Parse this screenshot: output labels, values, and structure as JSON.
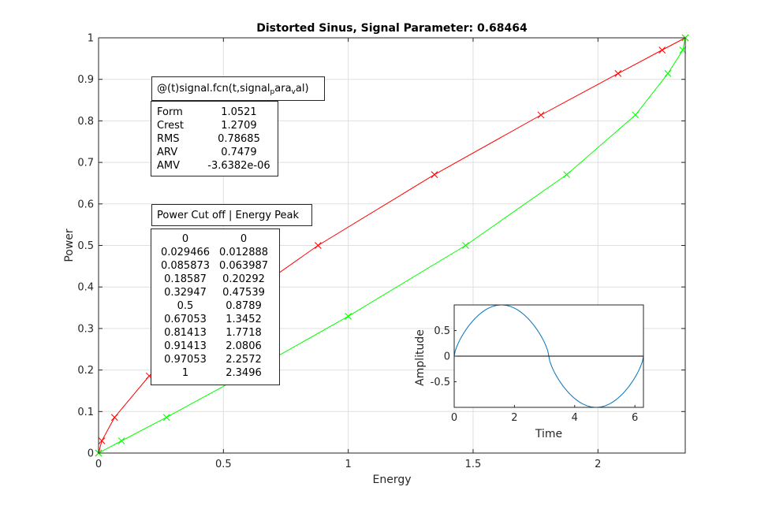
{
  "chart_data": [
    {
      "type": "line",
      "title": "Distorted Sinus, Signal Parameter: 0.68464",
      "xlabel": "Energy",
      "ylabel": "Power",
      "xlim": [
        0,
        2.3496
      ],
      "ylim": [
        0,
        1
      ],
      "xticks": [
        "0",
        "0.5",
        "1",
        "1.5",
        "2"
      ],
      "yticks": [
        "0",
        "0.1",
        "0.2",
        "0.3",
        "0.4",
        "0.5",
        "0.6",
        "0.7",
        "0.8",
        "0.9",
        "1"
      ],
      "grid": true,
      "series": [
        {
          "color": "#ff0000",
          "marker": "x",
          "x": [
            0,
            0.012888,
            0.063987,
            0.20292,
            0.47539,
            0.8789,
            1.3452,
            1.7718,
            2.0806,
            2.2572,
            2.3496
          ],
          "y": [
            0,
            0.029466,
            0.085873,
            0.18587,
            0.32947,
            0.5,
            0.67053,
            0.81413,
            0.91413,
            0.97053,
            1
          ]
        },
        {
          "color": "#00ff00",
          "marker": "x",
          "x": [
            0,
            0.092,
            0.272,
            0.577,
            1.0,
            1.47,
            1.875,
            2.15,
            2.28,
            2.34,
            2.3496
          ],
          "y": [
            0,
            0.029466,
            0.085873,
            0.18587,
            0.32947,
            0.5,
            0.67053,
            0.81413,
            0.91413,
            0.97053,
            1
          ]
        }
      ]
    },
    {
      "type": "line",
      "xlabel": "Time",
      "ylabel": "Amplitude",
      "xlim": [
        0,
        6.2832
      ],
      "ylim": [
        -1,
        1
      ],
      "xticks": [
        "0",
        "2",
        "4",
        "6"
      ],
      "yticks": [
        "-0.5",
        "0",
        "0.5"
      ],
      "grid": false,
      "series": [
        {
          "color": "#0072bd",
          "function": "sin(t) distorted",
          "x_range": [
            0,
            6.2832
          ]
        },
        {
          "color": "#000000",
          "x": [
            0,
            6.2832
          ],
          "y": [
            0,
            0
          ]
        }
      ]
    }
  ],
  "annotations": {
    "function_box": {
      "title_parts": [
        "@(t)signal.fcn(t,signal",
        "p",
        "ara",
        "v",
        "al)"
      ],
      "stats": [
        {
          "name": "Form",
          "value": "1.0521"
        },
        {
          "name": "Crest",
          "value": "1.2709"
        },
        {
          "name": "RMS",
          "value": "0.78685"
        },
        {
          "name": "ARV",
          "value": "0.7479"
        },
        {
          "name": "AMV",
          "value": "-3.6382e-06"
        }
      ]
    },
    "cutoff_box": {
      "title": "Power Cut off | Energy Peak",
      "rows": [
        [
          "0",
          "0"
        ],
        [
          "0.029466",
          "0.012888"
        ],
        [
          "0.085873",
          "0.063987"
        ],
        [
          "0.18587",
          "0.20292"
        ],
        [
          "0.32947",
          "0.47539"
        ],
        [
          "0.5",
          "0.8789"
        ],
        [
          "0.67053",
          "1.3452"
        ],
        [
          "0.81413",
          "1.7718"
        ],
        [
          "0.91413",
          "2.0806"
        ],
        [
          "0.97053",
          "2.2572"
        ],
        [
          "1",
          "2.3496"
        ]
      ]
    }
  }
}
